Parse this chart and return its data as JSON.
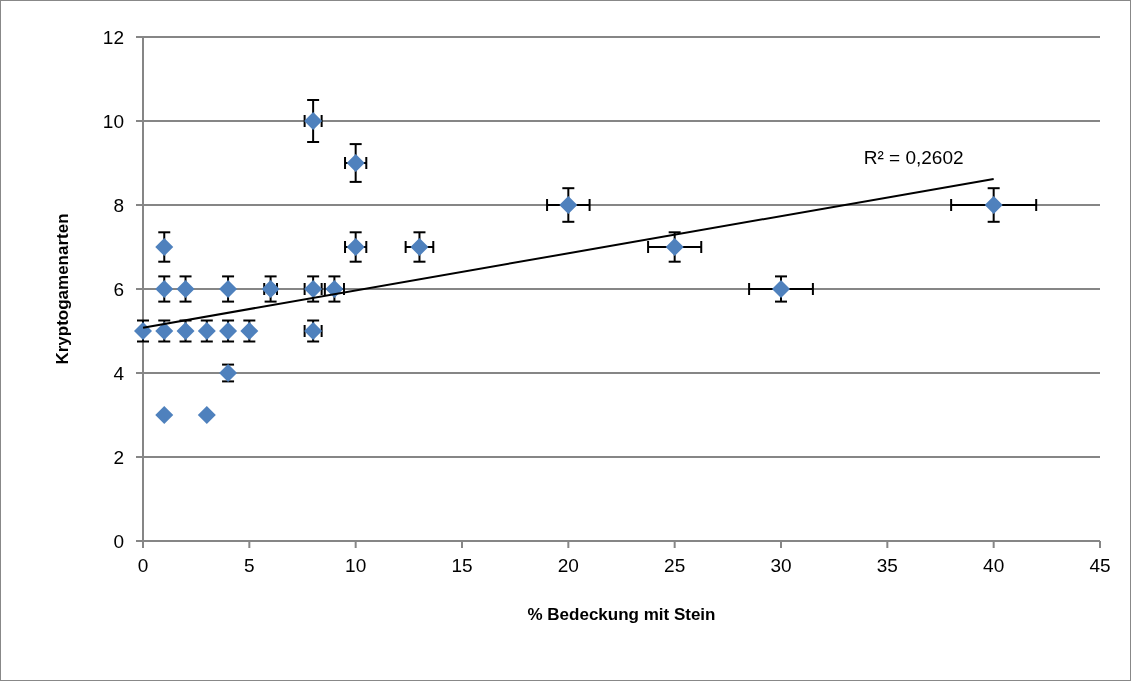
{
  "chart_data": {
    "type": "scatter",
    "xlabel": "% Bedeckung mit Stein",
    "ylabel": "Kryptogamenarten",
    "xlim": [
      0,
      45
    ],
    "xticks": [
      0,
      5,
      10,
      15,
      20,
      25,
      30,
      35,
      40,
      45
    ],
    "ylim": [
      0,
      12
    ],
    "yticks": [
      0,
      2,
      4,
      6,
      8,
      10,
      12
    ],
    "grid": "y",
    "marker": "diamond",
    "annotations": [
      "R² = 0,2602"
    ],
    "series": [
      {
        "color": "#4f81bd",
        "x": [
          0,
          1,
          1,
          1,
          1,
          2,
          2,
          3,
          3,
          4,
          4,
          4,
          5,
          6,
          8,
          8,
          8,
          9,
          10,
          10,
          13,
          20,
          25,
          30,
          40
        ],
        "values": [
          5,
          7,
          6,
          5,
          3,
          6,
          5,
          5,
          3,
          6,
          5,
          4,
          5,
          6,
          10,
          6,
          5,
          6,
          9,
          7,
          7,
          8,
          7,
          6,
          8
        ],
        "errors": [
          0.25,
          0.35,
          0.3,
          0.25,
          null,
          0.3,
          0.25,
          0.25,
          null,
          0.3,
          0.25,
          0.2,
          0.25,
          0.3,
          0.5,
          0.3,
          0.25,
          0.3,
          0.45,
          0.35,
          0.35,
          0.4,
          0.35,
          0.3,
          0.4
        ],
        "xerrors": [
          null,
          null,
          null,
          null,
          null,
          null,
          null,
          null,
          null,
          null,
          null,
          null,
          null,
          0.3,
          0.4,
          0.4,
          0.4,
          0.45,
          0.5,
          0.5,
          0.65,
          1,
          1.25,
          1.5,
          2
        ]
      },
      {
        "type": "line",
        "color": "#000000",
        "marker": "none",
        "x": [
          0,
          40
        ],
        "values": [
          5.08,
          8.62
        ]
      }
    ]
  }
}
